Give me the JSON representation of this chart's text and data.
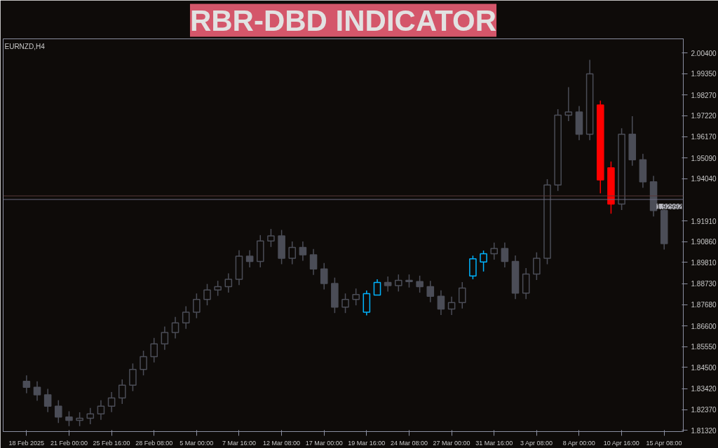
{
  "chart_data": {
    "type": "candlestick",
    "title": "RBR-DBD INDICATOR",
    "subtitle": "EURNZD,H4",
    "categories": [
      "18 Feb 2025",
      null,
      null,
      null,
      "21 Feb 00:00",
      null,
      null,
      null,
      "25 Feb 16:00",
      null,
      null,
      null,
      "28 Feb 08:00",
      null,
      null,
      null,
      "5 Mar 00:00",
      null,
      null,
      null,
      "7 Mar 16:00",
      null,
      null,
      null,
      "12 Mar 08:00",
      null,
      null,
      null,
      "17 Mar 00:00",
      null,
      null,
      null,
      "19 Mar 16:00",
      null,
      null,
      null,
      "24 Mar 08:00",
      null,
      null,
      null,
      "27 Mar 00:00",
      null,
      null,
      null,
      "31 Mar 16:00",
      null,
      null,
      null,
      "3 Apr 08:00",
      null,
      null,
      null,
      "8 Apr 00:00",
      null,
      null,
      null,
      "10 Apr 16:00",
      null,
      null,
      null,
      "15 Apr 08:00"
    ],
    "ohlc": [
      [
        1.838,
        1.841,
        1.832,
        1.835
      ],
      [
        1.835,
        1.838,
        1.8282,
        1.8312
      ],
      [
        1.8312,
        1.8342,
        1.8224,
        1.8254
      ],
      [
        1.8254,
        1.8284,
        1.8169,
        1.8199
      ],
      [
        1.8199,
        1.8229,
        1.8153,
        1.8183
      ],
      [
        1.8183,
        1.8223,
        1.8153,
        1.8193
      ],
      [
        1.8193,
        1.8245,
        1.8163,
        1.8215
      ],
      [
        1.8215,
        1.8284,
        1.8185,
        1.8254
      ],
      [
        1.8254,
        1.8326,
        1.8224,
        1.8296
      ],
      [
        1.8296,
        1.839,
        1.8266,
        1.836
      ],
      [
        1.836,
        1.847,
        1.833,
        1.844
      ],
      [
        1.844,
        1.8535,
        1.841,
        1.8505
      ],
      [
        1.8505,
        1.8599,
        1.8475,
        1.8569
      ],
      [
        1.8569,
        1.8657,
        1.8539,
        1.8627
      ],
      [
        1.8627,
        1.8705,
        1.8597,
        1.8675
      ],
      [
        1.8675,
        1.8759,
        1.8645,
        1.8729
      ],
      [
        1.8729,
        1.8824,
        1.8699,
        1.8794
      ],
      [
        1.8794,
        1.8872,
        1.8764,
        1.8842
      ],
      [
        1.8842,
        1.8888,
        1.8812,
        1.8858
      ],
      [
        1.8858,
        1.8926,
        1.8828,
        1.8896
      ],
      [
        1.8896,
        1.9042,
        1.8866,
        1.9012
      ],
      [
        1.9012,
        1.9042,
        1.8956,
        1.8986
      ],
      [
        1.8986,
        1.9119,
        1.8956,
        1.9089
      ],
      [
        1.9089,
        1.915,
        1.9059,
        1.9115
      ],
      [
        1.9115,
        1.9145,
        1.8972,
        1.9002
      ],
      [
        1.9002,
        1.9087,
        1.8972,
        1.9057
      ],
      [
        1.9057,
        1.9087,
        1.8989,
        1.9019
      ],
      [
        1.9019,
        1.9049,
        1.8918,
        1.8948
      ],
      [
        1.8948,
        1.8978,
        1.8844,
        1.8874
      ],
      [
        1.8874,
        1.8904,
        1.8725,
        1.8755
      ],
      [
        1.8755,
        1.8824,
        1.8725,
        1.8794
      ],
      [
        1.8794,
        1.8849,
        1.8764,
        1.8819
      ],
      [
        1.8729,
        1.8839,
        1.8713,
        1.8823
      ],
      [
        1.8816,
        1.8896,
        1.8816,
        1.888
      ],
      [
        1.888,
        1.891,
        1.8834,
        1.8864
      ],
      [
        1.8864,
        1.892,
        1.8834,
        1.889
      ],
      [
        1.889,
        1.892,
        1.8854,
        1.8884
      ],
      [
        1.8884,
        1.8914,
        1.8828,
        1.8858
      ],
      [
        1.8858,
        1.8888,
        1.878,
        1.881
      ],
      [
        1.881,
        1.884,
        1.8715,
        1.8745
      ],
      [
        1.8745,
        1.8808,
        1.8715,
        1.8778
      ],
      [
        1.8778,
        1.8881,
        1.8748,
        1.8851
      ],
      [
        1.8912,
        1.9015,
        1.8896,
        1.8999
      ],
      [
        1.8983,
        1.9041,
        1.8935,
        1.9025
      ],
      [
        1.9025,
        1.9081,
        1.8995,
        1.9051
      ],
      [
        1.9051,
        1.9081,
        1.8956,
        1.8986
      ],
      [
        1.8986,
        1.9016,
        1.8796,
        1.8826
      ],
      [
        1.8826,
        1.8952,
        1.8796,
        1.8922
      ],
      [
        1.8922,
        1.9032,
        1.8892,
        1.9002
      ],
      [
        1.9002,
        1.9402,
        1.8972,
        1.9372
      ],
      [
        1.9372,
        1.9755,
        1.9342,
        1.9725
      ],
      [
        1.9725,
        1.9867,
        1.9695,
        1.9741
      ],
      [
        1.9741,
        1.9771,
        1.9599,
        1.9629
      ],
      [
        1.9629,
        2.0005,
        1.9599,
        1.9934
      ],
      [
        1.9777,
        1.9799,
        1.933,
        1.9398
      ],
      [
        1.9459,
        1.9491,
        1.9227,
        1.9276
      ],
      [
        1.9276,
        1.9659,
        1.9246,
        1.9629
      ],
      [
        1.9629,
        1.972,
        1.947,
        1.95
      ],
      [
        1.95,
        1.953,
        1.9358,
        1.9388
      ],
      [
        1.9388,
        1.9418,
        1.9213,
        1.9243
      ],
      [
        1.9243,
        1.9273,
        1.9046,
        1.9076
      ]
    ],
    "colors": [
      "#4b4d57",
      "#4b4d57",
      "#4b4d57",
      "#4b4d57",
      "#4b4d57",
      "#4b4d57",
      "#4b4d57",
      "#4b4d57",
      "#4b4d57",
      "#4b4d57",
      "#4b4d57",
      "#4b4d57",
      "#4b4d57",
      "#4b4d57",
      "#4b4d57",
      "#4b4d57",
      "#4b4d57",
      "#4b4d57",
      "#4b4d57",
      "#4b4d57",
      "#4b4d57",
      "#4b4d57",
      "#4b4d57",
      "#4b4d57",
      "#4b4d57",
      "#4b4d57",
      "#4b4d57",
      "#4b4d57",
      "#4b4d57",
      "#4b4d57",
      "#4b4d57",
      "#4b4d57",
      "#00b4ff",
      "#00b4ff",
      "#4b4d57",
      "#4b4d57",
      "#4b4d57",
      "#4b4d57",
      "#4b4d57",
      "#4b4d57",
      "#4b4d57",
      "#4b4d57",
      "#00b4ff",
      "#00b4ff",
      "#4b4d57",
      "#4b4d57",
      "#4b4d57",
      "#4b4d57",
      "#4b4d57",
      "#4b4d57",
      "#4b4d57",
      "#4b4d57",
      "#4b4d57",
      "#4b4d57",
      "#ff0000",
      "#ff0000",
      "#4b4d57",
      "#4b4d57",
      "#4b4d57",
      "#4b4d57",
      "#4b4d57"
    ],
    "ylim": [
      1.8126,
      2.0111
    ],
    "yticks": [
      {
        "value": 2.004,
        "label": "2.00400"
      },
      {
        "value": 1.9935,
        "label": "1.99350"
      },
      {
        "value": 1.9827,
        "label": "1.98270"
      },
      {
        "value": 1.9722,
        "label": "1.97220"
      },
      {
        "value": 1.9617,
        "label": "1.96170"
      },
      {
        "value": 1.9509,
        "label": "1.95090"
      },
      {
        "value": 1.9404,
        "label": "1.94040"
      },
      {
        "value": 1.9191,
        "label": "1.91910"
      },
      {
        "value": 1.9086,
        "label": "1.90860"
      },
      {
        "value": 1.8981,
        "label": "1.89810"
      },
      {
        "value": 1.8873,
        "label": "1.88730"
      },
      {
        "value": 1.8768,
        "label": "1.87680"
      },
      {
        "value": 1.866,
        "label": "1.86600"
      },
      {
        "value": 1.8555,
        "label": "1.85550"
      },
      {
        "value": 1.845,
        "label": "1.84500"
      },
      {
        "value": 1.8342,
        "label": "1.83420"
      },
      {
        "value": 1.8237,
        "label": "1.82370"
      },
      {
        "value": 1.8132,
        "label": "1.81320"
      }
    ],
    "ref_lines": [
      {
        "axis": "y",
        "value": 1.92992,
        "label": "1.92992",
        "color": "#6a6a80"
      },
      {
        "axis": "y",
        "value": 1.9317,
        "color": "#5a3a3a"
      }
    ],
    "grid": false
  }
}
